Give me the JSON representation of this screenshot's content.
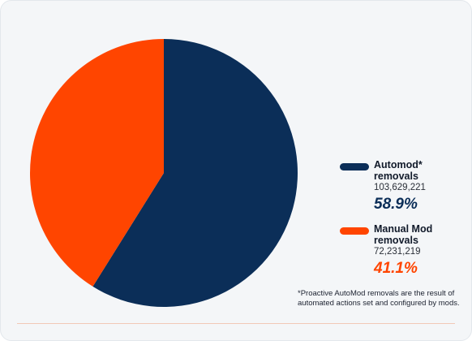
{
  "chart_data": {
    "type": "pie",
    "slices": [
      {
        "name": "Automod* removals",
        "name_line1": "Automod*",
        "name_line2": "removals",
        "count": "103,629,221",
        "value": 58.9,
        "label": "58.9%",
        "color": "#0b2e58"
      },
      {
        "name": "Manual Mod removals",
        "name_line1": "Manual Mod",
        "name_line2": "removals",
        "count": "72,231,219",
        "value": 41.1,
        "label": "41.1%",
        "color": "#ff4500"
      }
    ],
    "title": "",
    "legend_position": "right",
    "footnote": "*Proactive AutoMod removals are the result of automated actions set and configured by mods."
  }
}
